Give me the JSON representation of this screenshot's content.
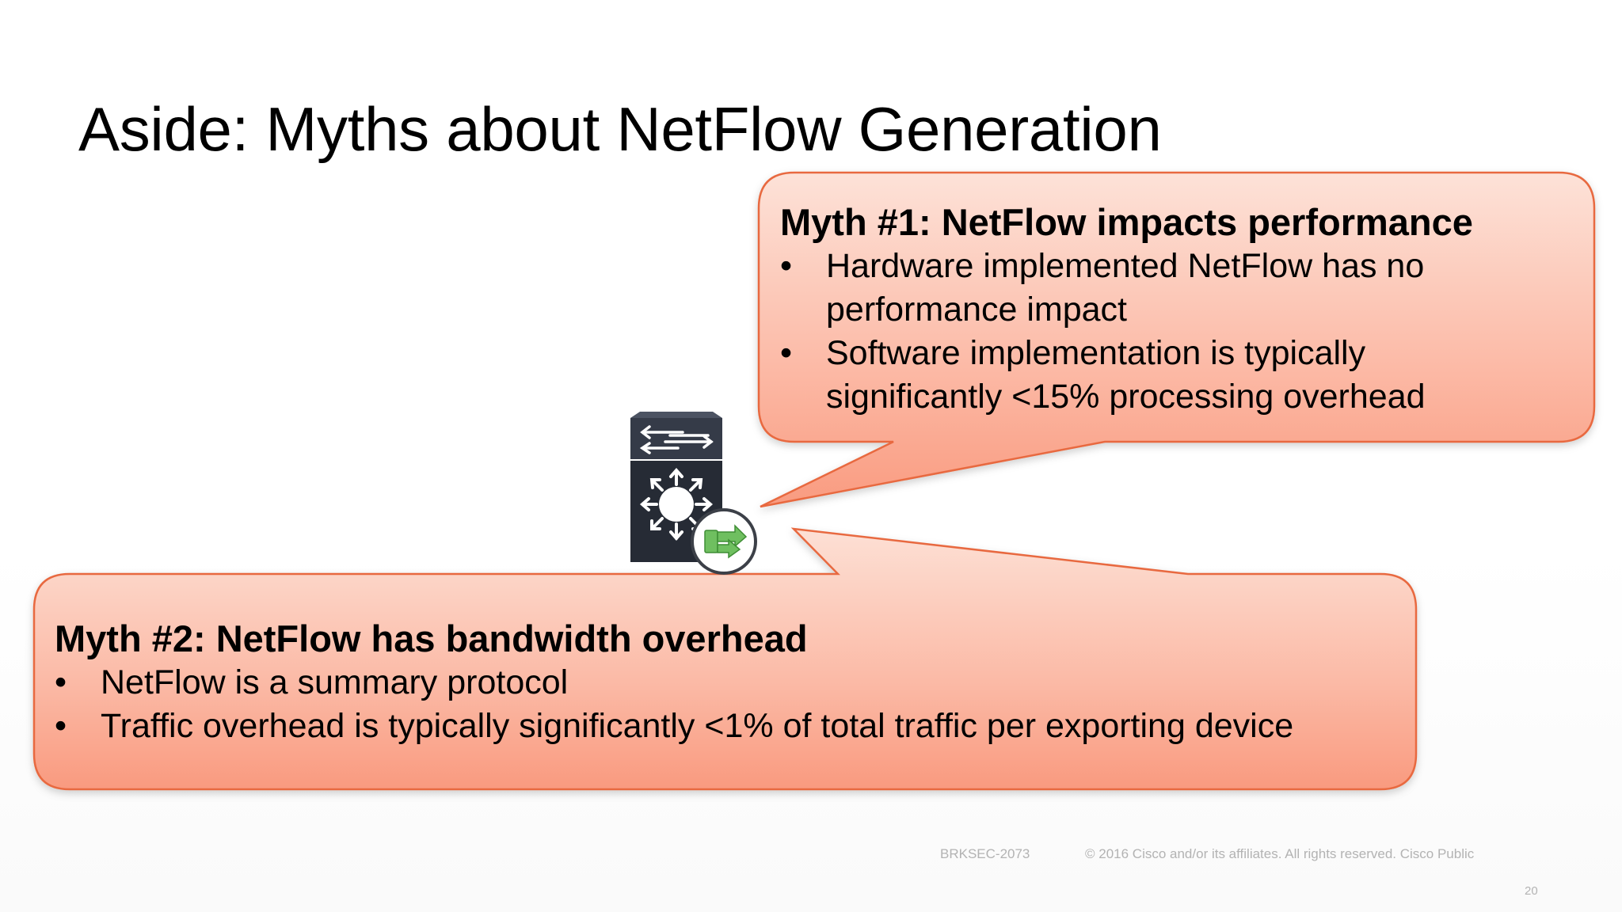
{
  "slide": {
    "title": "Aside: Myths about NetFlow Generation",
    "myth1": {
      "heading": "Myth #1: NetFlow impacts performance",
      "bullets": [
        "Hardware implemented NetFlow has no performance impact",
        "Software implementation is typically significantly <15% processing overhead"
      ]
    },
    "myth2": {
      "heading": "Myth #2: NetFlow has bandwidth overhead",
      "bullets": [
        "NetFlow is a summary protocol",
        "Traffic overhead is typically significantly <1% of total traffic per exporting device"
      ]
    },
    "bullet_glyph": "•",
    "device_icon": "multilayer-switch-with-netflow-icon",
    "footer": {
      "session_code": "BRKSEC-2073",
      "copyright": "© 2016  Cisco and/or its affiliates. All rights reserved.   Cisco Public",
      "page_number": "20"
    }
  },
  "colors": {
    "bubble_fill_top": "#fde0d6",
    "bubble_fill_bottom": "#f99a80",
    "bubble_border": "#e8693f",
    "title_text": "#000000",
    "footer_text": "#b3b3b3",
    "device_body": "#2b303b",
    "netflow_badge": "#6fbf60"
  }
}
